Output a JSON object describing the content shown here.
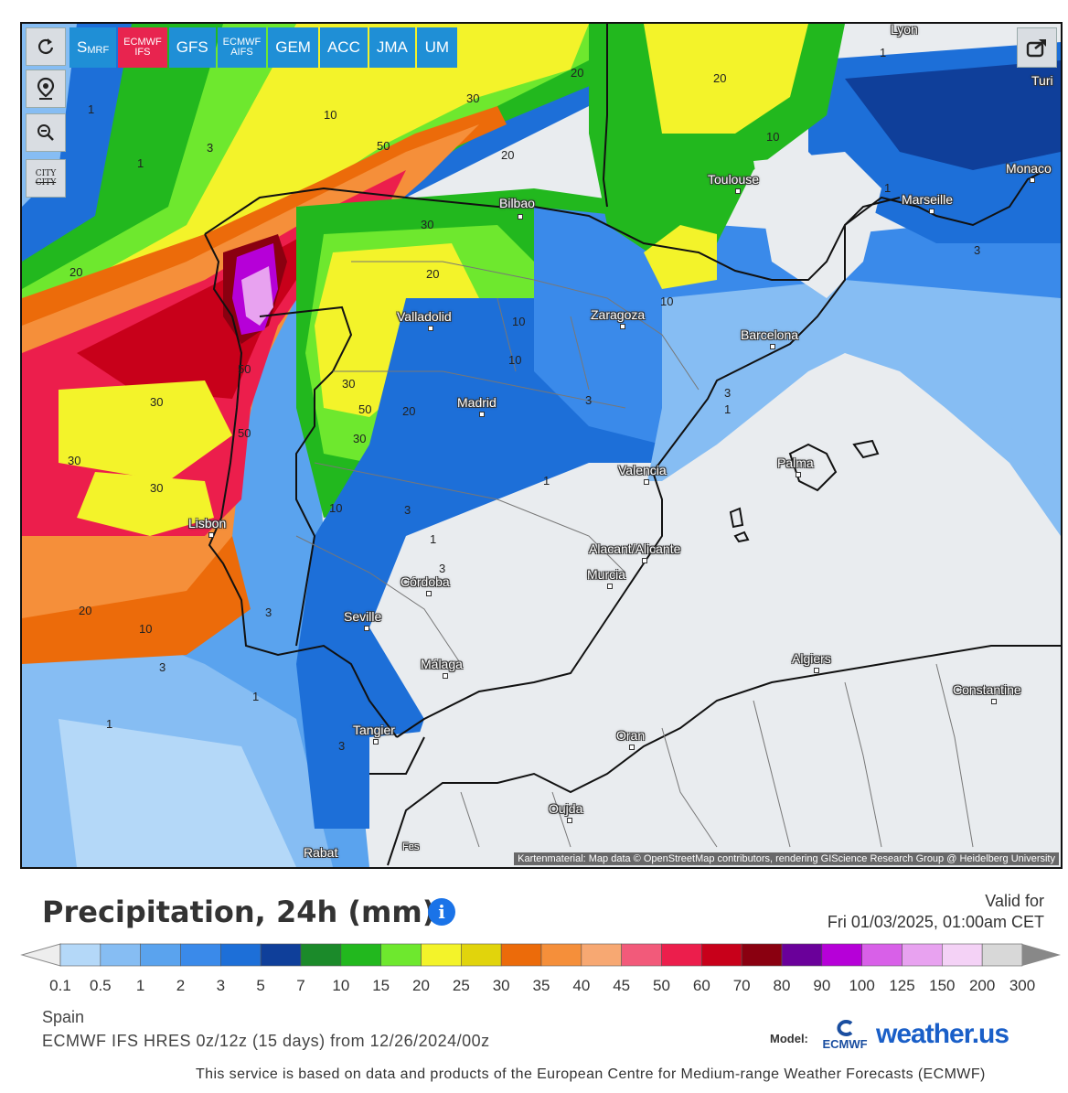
{
  "map": {
    "attribution": "Kartenmaterial: Map data © OpenStreetMap contributors, rendering GIScience Research Group @ Heidelberg University",
    "controls": {
      "city_top": "CITY",
      "city_bottom": "CITY"
    },
    "model_tabs": [
      {
        "label": "SMRF",
        "main": "S",
        "sub": "MRF"
      },
      {
        "label_line1": "ECMWF",
        "label_line2": "IFS"
      },
      {
        "label": "GFS"
      },
      {
        "label_line1": "ECMWF",
        "label_line2": "AIFS"
      },
      {
        "label": "GEM"
      },
      {
        "label": "ACC"
      },
      {
        "label": "JMA"
      },
      {
        "label": "UM"
      }
    ],
    "cities": {
      "lyon": "Lyon",
      "turin": "Turi",
      "bilbao": "Bilbao",
      "toulouse": "Toulouse",
      "monaco": "Monaco",
      "marseille": "Marseille",
      "valladolid": "Valladolid",
      "zaragoza": "Zaragoza",
      "barcelona": "Barcelona",
      "madrid": "Madrid",
      "palma": "Palma",
      "valencia": "Valencia",
      "lisbon": "Lisbon",
      "alicante": "Alacant/Alicante",
      "murcia": "Murcia",
      "cordoba": "Córdoba",
      "seville": "Seville",
      "malaga": "Málaga",
      "algiers": "Algiers",
      "constantine": "Constantine",
      "tangier": "Tangier",
      "oran": "Oran",
      "oujda": "Oujda",
      "rabat": "Rabat",
      "fes": "Fes"
    },
    "contour_labels": [
      "1",
      "3",
      "1",
      "10",
      "30",
      "50",
      "20",
      "20",
      "10",
      "20",
      "30",
      "20",
      "10",
      "10",
      "10",
      "30",
      "50",
      "30",
      "50",
      "30",
      "50",
      "20",
      "30",
      "10",
      "3",
      "1",
      "3",
      "3",
      "1",
      "1",
      "3",
      "20",
      "10",
      "3",
      "1",
      "1",
      "3",
      "1",
      "3",
      "3",
      "1",
      "20",
      "30"
    ]
  },
  "legend": {
    "title": "Precipitation, 24h (mm)",
    "valid_for_label": "Valid for",
    "valid_for_value": "Fri 01/03/2025, 01:00am CET",
    "ticks": [
      "0.1",
      "0.5",
      "1",
      "2",
      "3",
      "5",
      "7",
      "10",
      "15",
      "20",
      "25",
      "30",
      "35",
      "40",
      "45",
      "50",
      "60",
      "70",
      "80",
      "90",
      "100",
      "125",
      "150",
      "200",
      "300"
    ],
    "colors": [
      "#b4d8f8",
      "#86bdf3",
      "#5aa3ee",
      "#3a8aea",
      "#1d6fd8",
      "#0f3f9a",
      "#1b8a2a",
      "#22b81e",
      "#6ee82e",
      "#f3f32a",
      "#e1d40c",
      "#ec6b0a",
      "#f58f3a",
      "#f7a872",
      "#f25a7a",
      "#ec1e4c",
      "#c8001a",
      "#8a0010",
      "#6a009a",
      "#b600d8",
      "#d860e8",
      "#e8a2f0",
      "#f4d2f6",
      "#d8d8d8"
    ]
  },
  "region": "Spain",
  "model_description": "ECMWF IFS HRES 0z/12z (15 days) from 12/26/2024/00z",
  "model_label": "Model:",
  "ecmwf_logo_text": "ECMWF",
  "weatherus_logo_text": "weather.us",
  "footer": "This service is based on data and products of the European Centre for Medium-range Weather Forecasts (ECMWF)"
}
